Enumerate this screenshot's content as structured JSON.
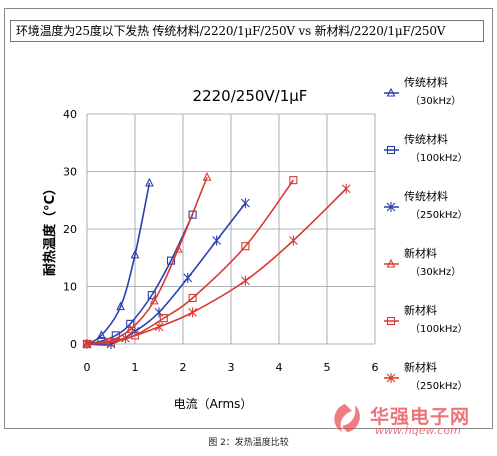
{
  "header": {
    "title": "环境温度为25度以下发热 传统材料/2220/1μF/250V vs 新材料/2220/1μF/250V"
  },
  "caption": "图 2：发热温度比较",
  "watermark": {
    "name": "华强电子网",
    "url": "www.hqew.com"
  },
  "chart_data": {
    "type": "line",
    "title": "2220/250V/1μF",
    "xlabel": "电流（Arms）",
    "ylabel": "耐热温度（°C）",
    "xlim": [
      0,
      6
    ],
    "ylim": [
      0,
      40
    ],
    "xticks": [
      "0",
      "1",
      "2",
      "3",
      "4",
      "5",
      "6"
    ],
    "yticks": [
      "0",
      "10",
      "20",
      "30",
      "40"
    ],
    "grid": true,
    "legend_position": "right",
    "series": [
      {
        "name": "传统材料（30kHz）",
        "line1": "传统材料",
        "line2": "（30kHz）",
        "color": "#2a3fb0",
        "marker": "triangle",
        "x": [
          0.0,
          0.3,
          0.7,
          1.0,
          1.3
        ],
        "y": [
          0.0,
          1.5,
          6.5,
          15.5,
          28.0
        ]
      },
      {
        "name": "传统材料（100kHz）",
        "line1": "传统材料",
        "line2": "（100kHz）",
        "color": "#2a3fb0",
        "marker": "square",
        "x": [
          0.0,
          0.3,
          0.6,
          0.9,
          1.35,
          1.75,
          2.2
        ],
        "y": [
          0.0,
          0.5,
          1.5,
          3.5,
          8.5,
          14.5,
          22.5
        ]
      },
      {
        "name": "传统材料（250kHz）",
        "line1": "传统材料",
        "line2": "（250kHz）",
        "color": "#2a3fb0",
        "marker": "star",
        "x": [
          0.0,
          0.5,
          1.0,
          1.5,
          2.1,
          2.7,
          3.3
        ],
        "y": [
          0.0,
          0.0,
          2.2,
          5.5,
          11.5,
          18.0,
          24.5
        ]
      },
      {
        "name": "新材料（30kHz）",
        "line1": "新材料",
        "line2": "（30kHz）",
        "color": "#d63a32",
        "marker": "triangle",
        "x": [
          0.0,
          0.4,
          0.9,
          1.4,
          1.9,
          2.5
        ],
        "y": [
          0.0,
          0.3,
          2.5,
          7.5,
          16.5,
          29.0
        ]
      },
      {
        "name": "新材料（100kHz）",
        "line1": "新材料",
        "line2": "（100kHz）",
        "color": "#d63a32",
        "marker": "square",
        "x": [
          0.0,
          0.5,
          1.0,
          1.6,
          2.2,
          3.3,
          4.3
        ],
        "y": [
          0.0,
          0.3,
          1.5,
          4.5,
          8.0,
          17.0,
          28.5
        ]
      },
      {
        "name": "新材料（250kHz）",
        "line1": "新材料",
        "line2": "（250kHz）",
        "color": "#d63a32",
        "marker": "star",
        "x": [
          0.0,
          0.8,
          1.5,
          2.2,
          3.3,
          4.3,
          5.4
        ],
        "y": [
          0.0,
          1.0,
          3.0,
          5.5,
          11.0,
          18.0,
          27.0
        ]
      }
    ]
  }
}
